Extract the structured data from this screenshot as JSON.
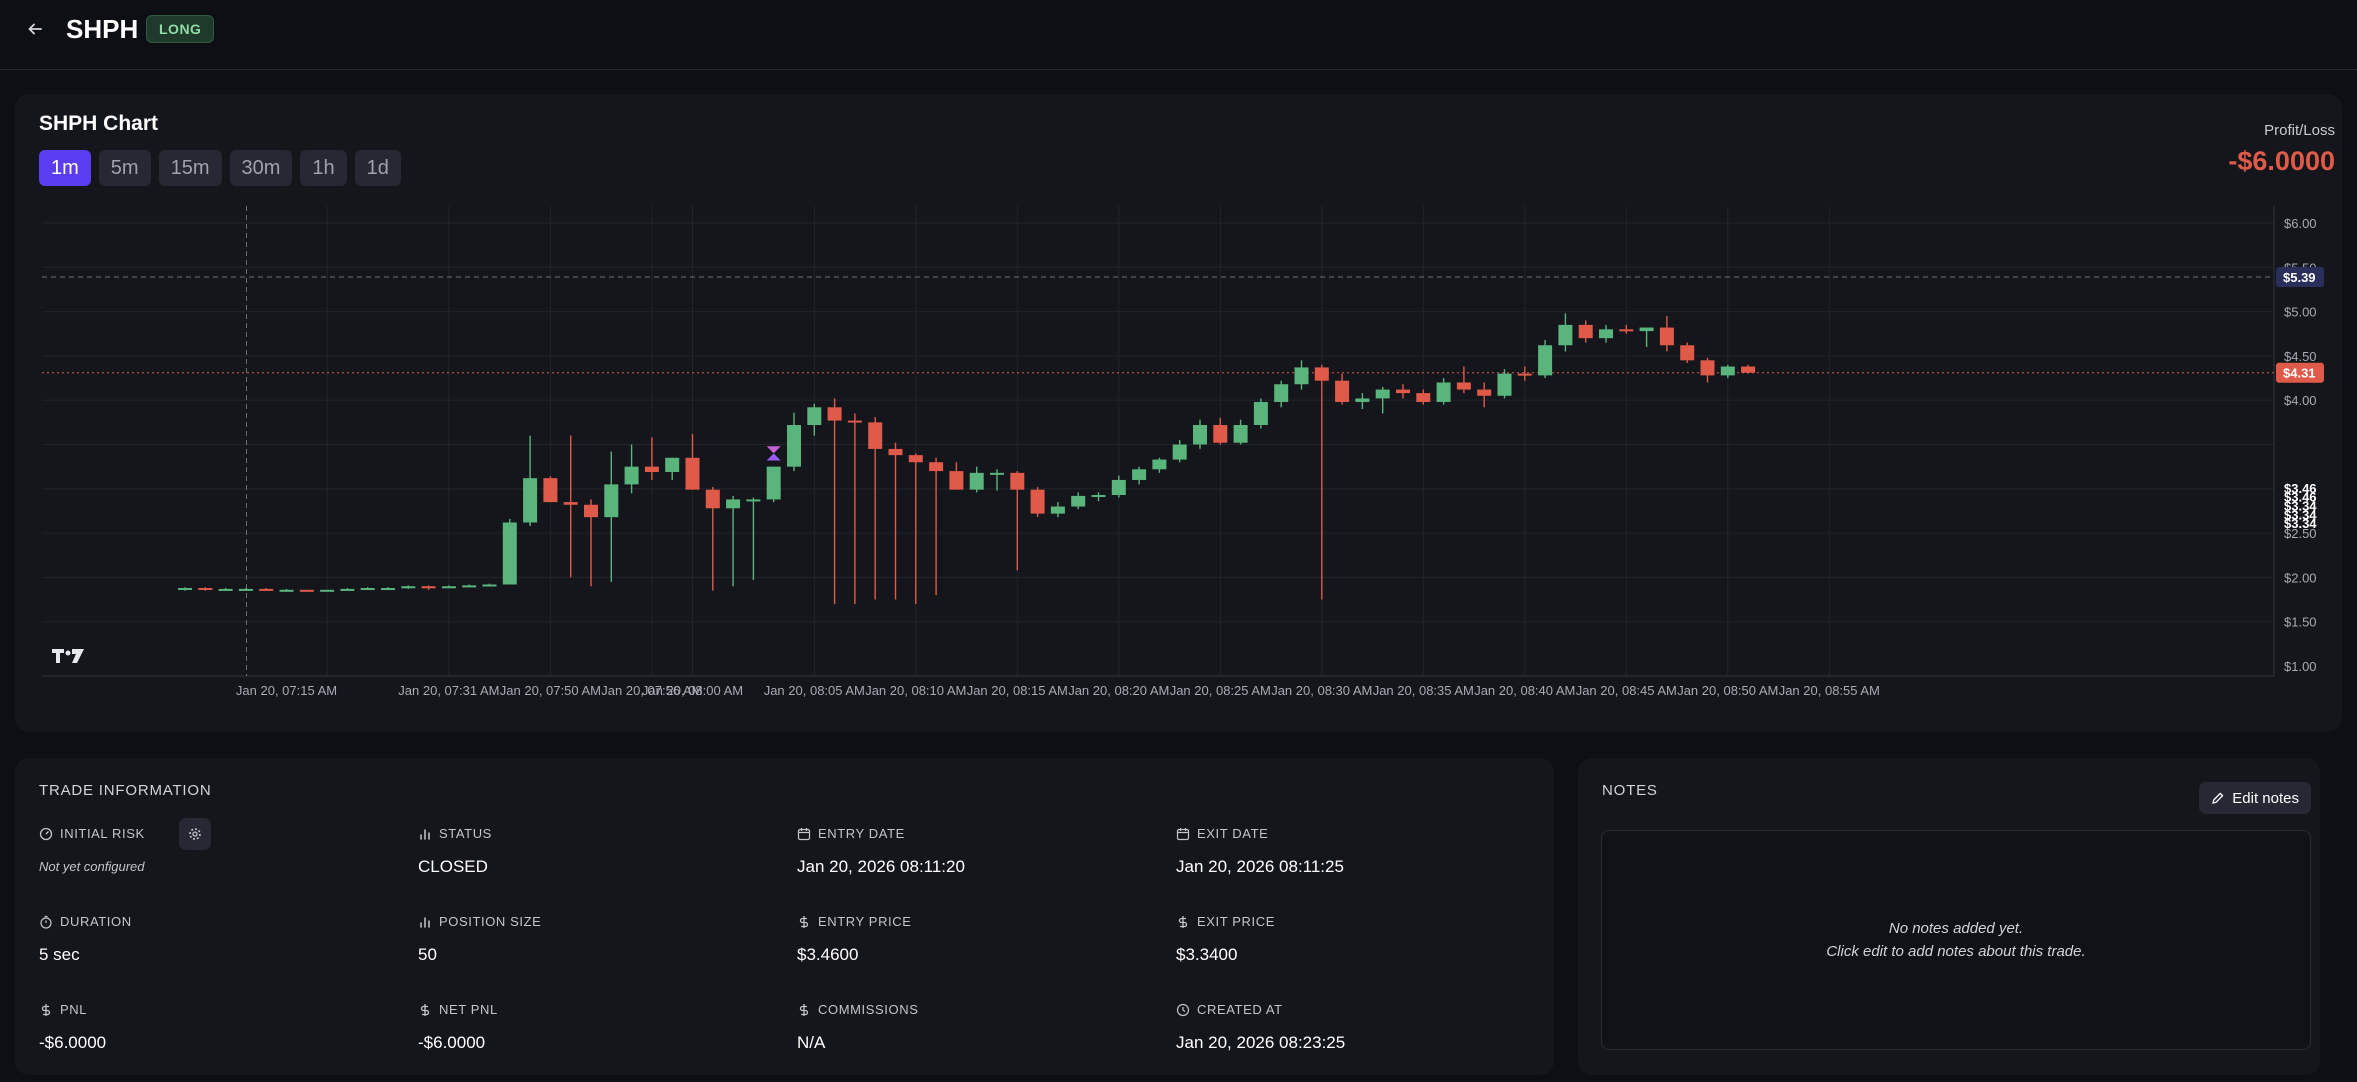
{
  "header": {
    "back_icon": "arrow-left-icon",
    "ticker": "SHPH",
    "side_badge": "LONG"
  },
  "chart_card": {
    "title": "SHPH Chart",
    "timeframes": [
      "1m",
      "5m",
      "15m",
      "30m",
      "1h",
      "1d"
    ],
    "active_timeframe": "1m",
    "pl_label": "Profit/Loss",
    "pl_value": "-$6.0000"
  },
  "chart_data": {
    "type": "candlestick",
    "x_ticks": [
      "Jan 20, 07:15 AM",
      "Jan 20, 07:31 AM",
      "Jan 20, 07:50 AM",
      "Jan 20, 07:56 AM",
      "Jan 20, 08:00 AM",
      "Jan 20, 08:05 AM",
      "Jan 20, 08:10 AM",
      "Jan 20, 08:15 AM",
      "Jan 20, 08:20 AM",
      "Jan 20, 08:25 AM",
      "Jan 20, 08:30 AM",
      "Jan 20, 08:35 AM",
      "Jan 20, 08:40 AM",
      "Jan 20, 08:45 AM",
      "Jan 20, 08:50 AM",
      "Jan 20, 08:55 AM"
    ],
    "x_tick_slots": [
      7,
      13,
      18,
      23,
      25,
      31,
      36,
      41,
      46,
      51,
      56,
      61,
      66,
      71,
      76,
      81
    ],
    "y_ticks": [
      "$6.00",
      "$5.50",
      "$5.00",
      "$4.50",
      "$4.00",
      "$2.50",
      "$2.00",
      "$1.50",
      "$1.00"
    ],
    "y_tick_values": [
      6.0,
      5.5,
      5.0,
      4.5,
      4.0,
      2.5,
      2.0,
      1.5,
      1.0
    ],
    "price_labels_right": [
      "$3.46",
      "$3.46",
      "$3.34",
      "$3.34",
      "$3.34"
    ],
    "ylim": [
      1.0,
      6.0
    ],
    "crosshair_price": "$5.39",
    "crosshair_value": 5.39,
    "last_price": "$4.31",
    "last_value": 4.31,
    "up_color": "#5ab57c",
    "down_color": "#e05a4a",
    "candles": [
      {
        "o": 1.87,
        "h": 1.89,
        "l": 1.85,
        "c": 1.88
      },
      {
        "o": 1.88,
        "h": 1.89,
        "l": 1.85,
        "c": 1.86
      },
      {
        "o": 1.86,
        "h": 1.88,
        "l": 1.86,
        "c": 1.87
      },
      {
        "o": 1.87,
        "h": 1.88,
        "l": 1.86,
        "c": 1.87
      },
      {
        "o": 1.87,
        "h": 1.88,
        "l": 1.85,
        "c": 1.86
      },
      {
        "o": 1.86,
        "h": 1.87,
        "l": 1.85,
        "c": 1.86
      },
      {
        "o": 1.86,
        "h": 1.86,
        "l": 1.84,
        "c": 1.85
      },
      {
        "o": 1.85,
        "h": 1.86,
        "l": 1.84,
        "c": 1.86
      },
      {
        "o": 1.86,
        "h": 1.88,
        "l": 1.86,
        "c": 1.87
      },
      {
        "o": 1.87,
        "h": 1.89,
        "l": 1.86,
        "c": 1.88
      },
      {
        "o": 1.88,
        "h": 1.89,
        "l": 1.86,
        "c": 1.88
      },
      {
        "o": 1.88,
        "h": 1.91,
        "l": 1.87,
        "c": 1.9
      },
      {
        "o": 1.9,
        "h": 1.91,
        "l": 1.86,
        "c": 1.88
      },
      {
        "o": 1.88,
        "h": 1.91,
        "l": 1.88,
        "c": 1.9
      },
      {
        "o": 1.9,
        "h": 1.92,
        "l": 1.89,
        "c": 1.91
      },
      {
        "o": 1.91,
        "h": 1.93,
        "l": 1.9,
        "c": 1.92
      },
      {
        "o": 1.92,
        "h": 2.66,
        "l": 1.92,
        "c": 2.62
      },
      {
        "o": 2.62,
        "h": 3.6,
        "l": 2.58,
        "c": 3.12
      },
      {
        "o": 3.12,
        "h": 3.14,
        "l": 2.85,
        "c": 2.85
      },
      {
        "o": 2.85,
        "h": 3.6,
        "l": 2.0,
        "c": 2.82
      },
      {
        "o": 2.82,
        "h": 2.88,
        "l": 1.9,
        "c": 2.68
      },
      {
        "o": 2.68,
        "h": 3.42,
        "l": 1.95,
        "c": 3.05
      },
      {
        "o": 3.05,
        "h": 3.5,
        "l": 2.95,
        "c": 3.25
      },
      {
        "o": 3.25,
        "h": 3.58,
        "l": 3.1,
        "c": 3.19
      },
      {
        "o": 3.19,
        "h": 3.35,
        "l": 3.1,
        "c": 3.35
      },
      {
        "o": 3.35,
        "h": 3.62,
        "l": 3.0,
        "c": 2.99
      },
      {
        "o": 2.99,
        "h": 3.02,
        "l": 1.85,
        "c": 2.78
      },
      {
        "o": 2.78,
        "h": 2.92,
        "l": 1.9,
        "c": 2.88
      },
      {
        "o": 2.88,
        "h": 2.9,
        "l": 1.97,
        "c": 2.88
      },
      {
        "o": 2.88,
        "h": 3.25,
        "l": 2.85,
        "c": 3.25
      },
      {
        "o": 3.25,
        "h": 3.86,
        "l": 3.2,
        "c": 3.72
      },
      {
        "o": 3.72,
        "h": 3.96,
        "l": 3.6,
        "c": 3.92
      },
      {
        "o": 3.92,
        "h": 4.02,
        "l": 1.7,
        "c": 3.77
      },
      {
        "o": 3.77,
        "h": 3.85,
        "l": 1.7,
        "c": 3.75
      },
      {
        "o": 3.75,
        "h": 3.81,
        "l": 1.75,
        "c": 3.45
      },
      {
        "o": 3.45,
        "h": 3.52,
        "l": 1.75,
        "c": 3.38
      },
      {
        "o": 3.38,
        "h": 3.4,
        "l": 1.7,
        "c": 3.3
      },
      {
        "o": 3.3,
        "h": 3.35,
        "l": 1.8,
        "c": 3.2
      },
      {
        "o": 3.2,
        "h": 3.3,
        "l": 3.0,
        "c": 2.99
      },
      {
        "o": 2.99,
        "h": 3.25,
        "l": 2.96,
        "c": 3.18
      },
      {
        "o": 3.18,
        "h": 3.22,
        "l": 2.98,
        "c": 3.18
      },
      {
        "o": 3.18,
        "h": 3.2,
        "l": 2.08,
        "c": 2.99
      },
      {
        "o": 2.99,
        "h": 3.02,
        "l": 2.68,
        "c": 2.72
      },
      {
        "o": 2.72,
        "h": 2.85,
        "l": 2.68,
        "c": 2.8
      },
      {
        "o": 2.8,
        "h": 2.96,
        "l": 2.77,
        "c": 2.92
      },
      {
        "o": 2.92,
        "h": 2.96,
        "l": 2.86,
        "c": 2.93
      },
      {
        "o": 2.93,
        "h": 3.15,
        "l": 2.9,
        "c": 3.1
      },
      {
        "o": 3.1,
        "h": 3.25,
        "l": 3.05,
        "c": 3.22
      },
      {
        "o": 3.22,
        "h": 3.35,
        "l": 3.18,
        "c": 3.33
      },
      {
        "o": 3.33,
        "h": 3.55,
        "l": 3.3,
        "c": 3.5
      },
      {
        "o": 3.5,
        "h": 3.78,
        "l": 3.45,
        "c": 3.72
      },
      {
        "o": 3.72,
        "h": 3.8,
        "l": 3.5,
        "c": 3.52
      },
      {
        "o": 3.52,
        "h": 3.78,
        "l": 3.5,
        "c": 3.72
      },
      {
        "o": 3.72,
        "h": 4.02,
        "l": 3.68,
        "c": 3.98
      },
      {
        "o": 3.98,
        "h": 4.22,
        "l": 3.92,
        "c": 4.18
      },
      {
        "o": 4.18,
        "h": 4.45,
        "l": 4.12,
        "c": 4.37
      },
      {
        "o": 4.37,
        "h": 4.4,
        "l": 1.75,
        "c": 4.22
      },
      {
        "o": 4.22,
        "h": 4.3,
        "l": 3.95,
        "c": 3.98
      },
      {
        "o": 3.98,
        "h": 4.08,
        "l": 3.9,
        "c": 4.02
      },
      {
        "o": 4.02,
        "h": 4.15,
        "l": 3.85,
        "c": 4.12
      },
      {
        "o": 4.12,
        "h": 4.18,
        "l": 4.02,
        "c": 4.08
      },
      {
        "o": 4.08,
        "h": 4.12,
        "l": 3.95,
        "c": 3.98
      },
      {
        "o": 3.98,
        "h": 4.25,
        "l": 3.95,
        "c": 4.2
      },
      {
        "o": 4.2,
        "h": 4.38,
        "l": 4.08,
        "c": 4.12
      },
      {
        "o": 4.12,
        "h": 4.2,
        "l": 3.92,
        "c": 4.05
      },
      {
        "o": 4.05,
        "h": 4.35,
        "l": 4.02,
        "c": 4.3
      },
      {
        "o": 4.3,
        "h": 4.38,
        "l": 4.22,
        "c": 4.28
      },
      {
        "o": 4.28,
        "h": 4.68,
        "l": 4.25,
        "c": 4.62
      },
      {
        "o": 4.62,
        "h": 4.98,
        "l": 4.55,
        "c": 4.85
      },
      {
        "o": 4.85,
        "h": 4.9,
        "l": 4.65,
        "c": 4.7
      },
      {
        "o": 4.7,
        "h": 4.85,
        "l": 4.65,
        "c": 4.8
      },
      {
        "o": 4.8,
        "h": 4.85,
        "l": 4.75,
        "c": 4.78
      },
      {
        "o": 4.78,
        "h": 4.82,
        "l": 4.6,
        "c": 4.82
      },
      {
        "o": 4.82,
        "h": 4.95,
        "l": 4.55,
        "c": 4.62
      },
      {
        "o": 4.62,
        "h": 4.65,
        "l": 4.42,
        "c": 4.45
      },
      {
        "o": 4.45,
        "h": 4.48,
        "l": 4.2,
        "c": 4.28
      },
      {
        "o": 4.28,
        "h": 4.4,
        "l": 4.25,
        "c": 4.38
      },
      {
        "o": 4.38,
        "h": 4.4,
        "l": 4.3,
        "c": 4.31
      }
    ],
    "trade_marker_candle": 29,
    "crosshair_slot": 5
  },
  "trade_info": {
    "title": "TRADE INFORMATION",
    "fields": [
      {
        "label": "INITIAL RISK",
        "value": "Not yet configured",
        "icon": "gauge-icon"
      },
      {
        "label": "STATUS",
        "value": "CLOSED",
        "icon": "bar-chart-icon"
      },
      {
        "label": "ENTRY DATE",
        "value": "Jan 20, 2026 08:11:20",
        "icon": "calendar-icon"
      },
      {
        "label": "EXIT DATE",
        "value": "Jan 20, 2026 08:11:25",
        "icon": "calendar-icon"
      },
      {
        "label": "DURATION",
        "value": "5 sec",
        "icon": "stopwatch-icon"
      },
      {
        "label": "POSITION SIZE",
        "value": "50",
        "icon": "bar-chart-icon"
      },
      {
        "label": "ENTRY PRICE",
        "value": "$3.4600",
        "icon": "dollar-icon"
      },
      {
        "label": "EXIT PRICE",
        "value": "$3.3400",
        "icon": "dollar-icon"
      },
      {
        "label": "PNL",
        "value": "-$6.0000",
        "icon": "dollar-icon"
      },
      {
        "label": "NET PNL",
        "value": "-$6.0000",
        "icon": "dollar-icon"
      },
      {
        "label": "COMMISSIONS",
        "value": "N/A",
        "icon": "dollar-icon"
      },
      {
        "label": "CREATED AT",
        "value": "Jan 20, 2026 08:23:25",
        "icon": "clock-icon"
      }
    ]
  },
  "notes": {
    "title": "NOTES",
    "edit_label": "Edit notes",
    "empty_line1": "No notes added yet.",
    "empty_line2": "Click edit to add notes about this trade."
  }
}
